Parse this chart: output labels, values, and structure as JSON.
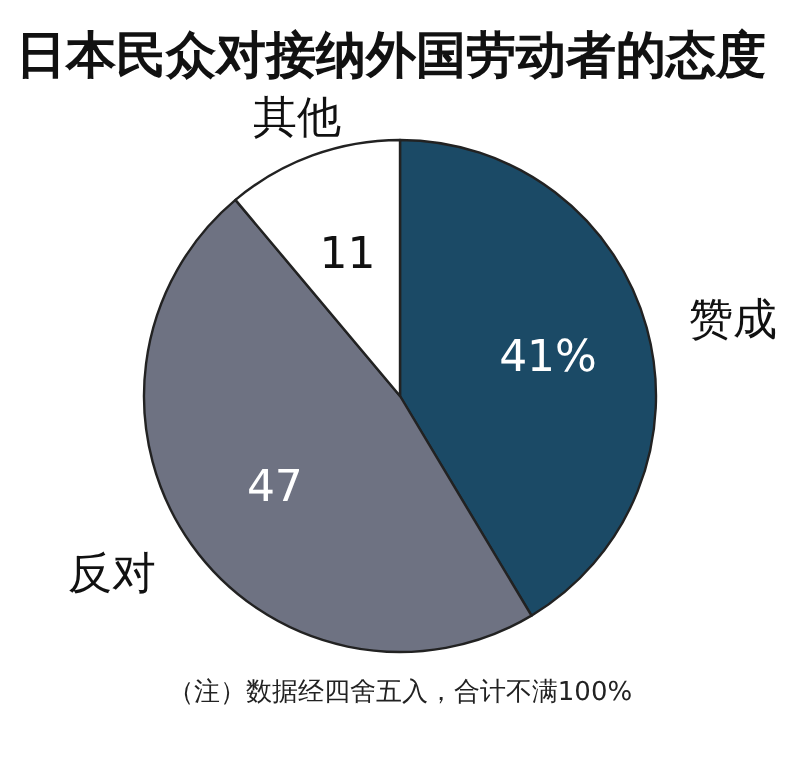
{
  "chart_data": {
    "type": "pie",
    "title": "日本民众对接纳外国劳动者的态度",
    "categories": [
      "赞成",
      "反对",
      "其他"
    ],
    "values": [
      41,
      47,
      11
    ],
    "value_labels": [
      "41%",
      "47",
      "11"
    ],
    "colors": [
      "#1b4a66",
      "#6e7282",
      "#ffffff"
    ],
    "annotations": [
      "（注）数据经四舍五入，合计不满100%"
    ]
  }
}
